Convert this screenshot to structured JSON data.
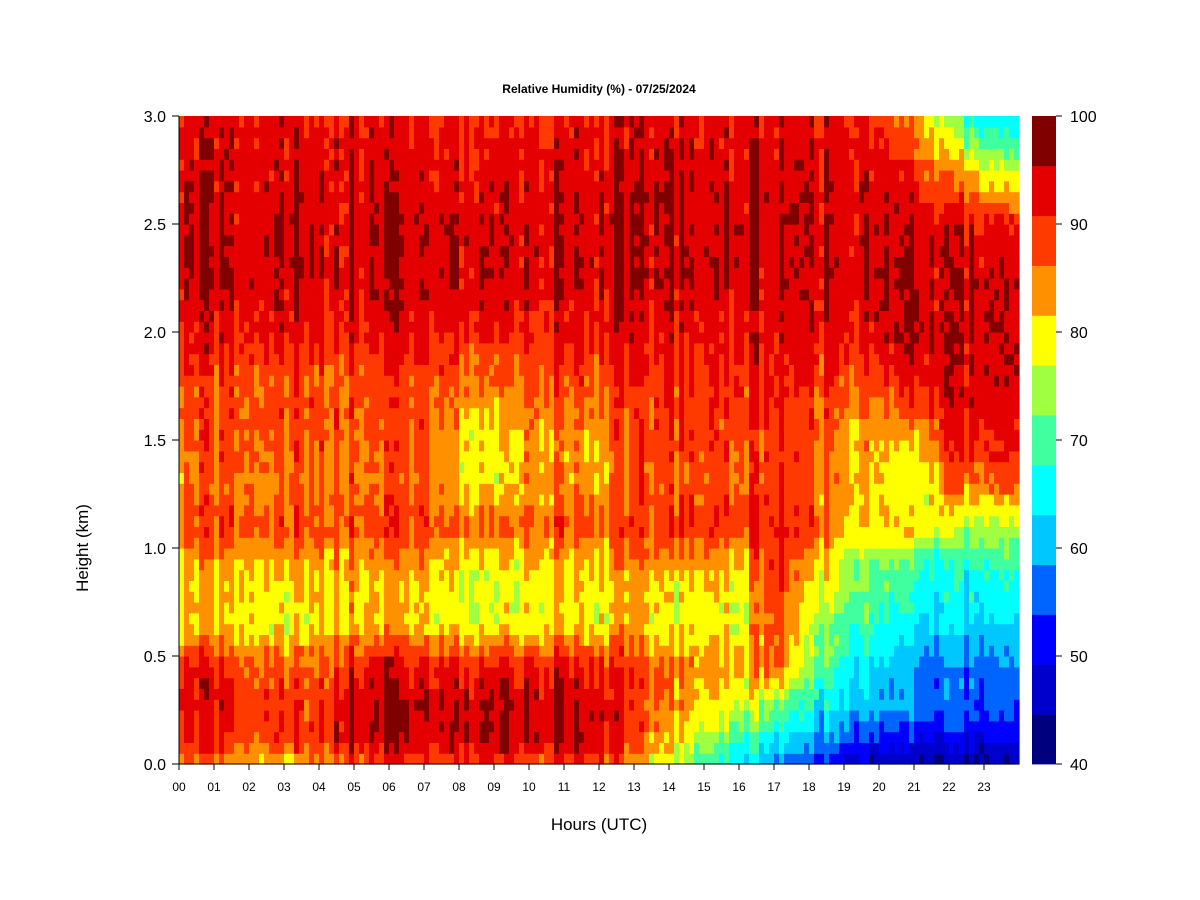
{
  "chart_data": {
    "type": "heatmap",
    "title": "Relative Humidity (%) - 07/25/2024",
    "xlabel": "Hours (UTC)",
    "ylabel": "Height (km)",
    "x_ticks": [
      "00",
      "01",
      "02",
      "03",
      "04",
      "05",
      "06",
      "07",
      "08",
      "09",
      "10",
      "11",
      "12",
      "13",
      "14",
      "15",
      "16",
      "17",
      "18",
      "19",
      "20",
      "21",
      "22",
      "23"
    ],
    "y_ticks": [
      "0.0",
      "0.5",
      "1.0",
      "1.5",
      "2.0",
      "2.5",
      "3.0"
    ],
    "xlim": [
      0,
      24
    ],
    "ylim": [
      0,
      3.0
    ],
    "colorbar": {
      "range": [
        40,
        100
      ],
      "tick_labels": [
        "40",
        "50",
        "60",
        "70",
        "80",
        "90",
        "100"
      ],
      "levels": [
        40,
        45,
        50,
        55,
        60,
        65,
        70,
        75,
        80,
        85,
        90,
        95,
        100
      ],
      "colors": [
        "#00007f",
        "#0000cd",
        "#0000ff",
        "#0064ff",
        "#00c8ff",
        "#00ffff",
        "#40ff9f",
        "#9fff40",
        "#ffff00",
        "#ff9100",
        "#ff3a00",
        "#e40000",
        "#800000"
      ]
    },
    "hours": [
      0,
      1,
      2,
      3,
      4,
      5,
      6,
      7,
      8,
      9,
      10,
      11,
      12,
      13,
      14,
      15,
      16,
      17,
      18,
      19,
      20,
      21,
      22,
      23,
      24
    ],
    "heights_km": [
      0.0,
      0.1,
      0.25,
      0.45,
      0.65,
      0.9,
      1.1,
      1.3,
      1.5,
      1.75,
      2.0,
      2.25,
      2.5,
      2.75,
      3.0
    ],
    "rh_percent": [
      [
        88,
        88,
        86,
        82,
        88,
        92,
        92,
        92,
        92,
        92,
        92,
        92,
        92,
        86,
        80,
        72,
        66,
        60,
        55,
        50,
        46,
        44,
        44,
        44,
        44
      ],
      [
        95,
        93,
        92,
        92,
        94,
        100,
        100,
        99,
        99,
        99,
        100,
        100,
        99,
        92,
        84,
        78,
        72,
        66,
        60,
        56,
        52,
        50,
        50,
        50,
        50
      ],
      [
        97,
        96,
        94,
        93,
        94,
        100,
        100,
        99,
        99,
        99,
        100,
        100,
        99,
        92,
        88,
        84,
        80,
        74,
        68,
        64,
        60,
        58,
        56,
        56,
        56
      ],
      [
        95,
        95,
        92,
        91,
        92,
        96,
        98,
        97,
        96,
        96,
        97,
        97,
        96,
        92,
        90,
        88,
        86,
        92,
        76,
        70,
        64,
        60,
        58,
        58,
        58
      ],
      [
        84,
        84,
        84,
        80,
        84,
        86,
        84,
        84,
        82,
        80,
        82,
        84,
        84,
        86,
        80,
        82,
        80,
        93,
        80,
        74,
        70,
        66,
        64,
        64,
        64
      ],
      [
        84,
        86,
        86,
        84,
        86,
        86,
        86,
        86,
        82,
        80,
        84,
        84,
        84,
        88,
        84,
        86,
        84,
        94,
        86,
        80,
        74,
        70,
        68,
        70,
        70
      ],
      [
        92,
        93,
        92,
        92,
        93,
        93,
        93,
        94,
        90,
        90,
        92,
        92,
        92,
        92,
        94,
        94,
        94,
        96,
        92,
        86,
        84,
        84,
        80,
        78,
        78
      ],
      [
        88,
        90,
        90,
        88,
        90,
        90,
        90,
        90,
        84,
        82,
        88,
        88,
        88,
        90,
        90,
        92,
        90,
        94,
        92,
        88,
        84,
        80,
        90,
        90,
        90
      ],
      [
        90,
        92,
        92,
        92,
        92,
        92,
        92,
        92,
        84,
        80,
        88,
        88,
        88,
        92,
        92,
        94,
        92,
        94,
        92,
        88,
        86,
        84,
        95,
        96,
        96
      ],
      [
        92,
        92,
        92,
        92,
        92,
        92,
        92,
        92,
        90,
        88,
        92,
        92,
        92,
        92,
        94,
        94,
        94,
        96,
        94,
        92,
        92,
        96,
        98,
        98,
        98
      ],
      [
        96,
        96,
        96,
        96,
        96,
        97,
        97,
        97,
        95,
        94,
        96,
        96,
        97,
        97,
        96,
        96,
        96,
        97,
        97,
        97,
        98,
        99,
        99,
        99,
        99
      ],
      [
        99,
        99,
        99,
        99,
        99,
        99,
        99,
        99,
        98,
        98,
        99,
        99,
        99,
        99,
        99,
        99,
        99,
        99,
        99,
        99,
        99,
        99,
        99,
        99,
        99
      ],
      [
        99,
        99,
        99,
        99,
        99,
        99,
        99,
        99,
        98,
        98,
        99,
        99,
        99,
        99,
        99,
        99,
        99,
        99,
        99,
        99,
        99,
        99,
        98,
        96,
        94
      ],
      [
        98,
        98,
        98,
        98,
        98,
        98,
        98,
        98,
        96,
        96,
        98,
        98,
        98,
        98,
        98,
        98,
        98,
        98,
        98,
        98,
        97,
        94,
        88,
        82,
        78
      ],
      [
        96,
        97,
        97,
        97,
        96,
        97,
        97,
        96,
        94,
        93,
        96,
        96,
        97,
        97,
        97,
        97,
        97,
        97,
        97,
        97,
        94,
        86,
        76,
        66,
        62
      ]
    ]
  }
}
